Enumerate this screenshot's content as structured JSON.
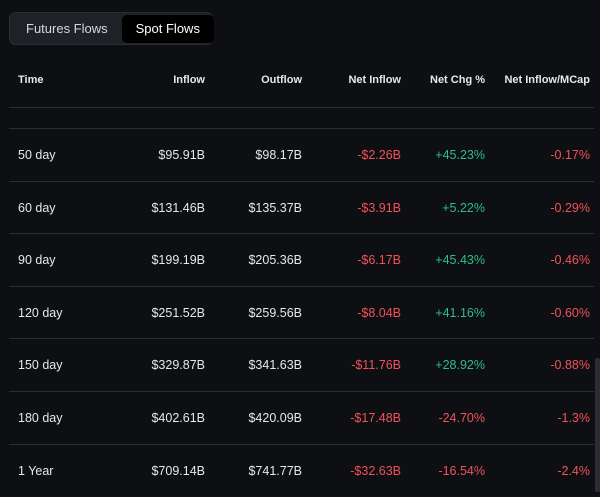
{
  "tabs": [
    {
      "label": "Futures Flows",
      "active": false
    },
    {
      "label": "Spot Flows",
      "active": true
    }
  ],
  "columns": [
    "Time",
    "Inflow",
    "Outflow",
    "Net Inflow",
    "Net Chg %",
    "Net Inflow/MCap"
  ],
  "colors": {
    "negative": "#f0525c",
    "positive": "#2ebd85"
  },
  "rows": [
    {
      "time": "50 day",
      "inflow": "$95.91B",
      "outflow": "$98.17B",
      "net": "-$2.26B",
      "chg": "+45.23%",
      "mcap": "-0.17%"
    },
    {
      "time": "60 day",
      "inflow": "$131.46B",
      "outflow": "$135.37B",
      "net": "-$3.91B",
      "chg": "+5.22%",
      "mcap": "-0.29%"
    },
    {
      "time": "90 day",
      "inflow": "$199.19B",
      "outflow": "$205.36B",
      "net": "-$6.17B",
      "chg": "+45.43%",
      "mcap": "-0.46%"
    },
    {
      "time": "120 day",
      "inflow": "$251.52B",
      "outflow": "$259.56B",
      "net": "-$8.04B",
      "chg": "+41.16%",
      "mcap": "-0.60%"
    },
    {
      "time": "150 day",
      "inflow": "$329.87B",
      "outflow": "$341.63B",
      "net": "-$11.76B",
      "chg": "+28.92%",
      "mcap": "-0.88%"
    },
    {
      "time": "180 day",
      "inflow": "$402.61B",
      "outflow": "$420.09B",
      "net": "-$17.48B",
      "chg": "-24.70%",
      "mcap": "-1.3%"
    },
    {
      "time": "1 Year",
      "inflow": "$709.14B",
      "outflow": "$741.77B",
      "net": "-$32.63B",
      "chg": "-16.54%",
      "mcap": "-2.4%"
    }
  ]
}
